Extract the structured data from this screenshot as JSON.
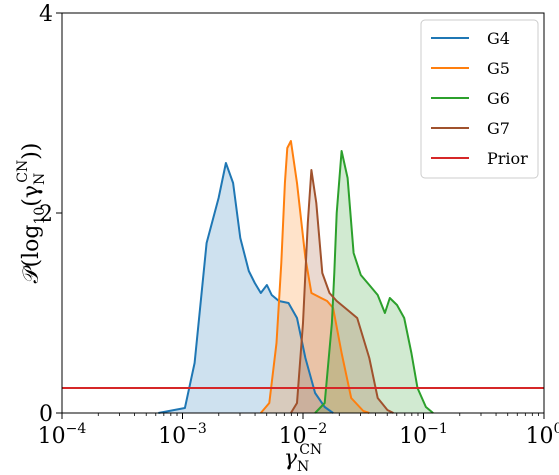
{
  "chart_data": {
    "type": "area",
    "title": "",
    "xlabel": "γN^CN",
    "xlabel_base": "γ",
    "xlabel_sub": "N",
    "xlabel_sup": "CN",
    "ylabel": "𝒫(log10(γN^CN))",
    "ylabel_parts": {
      "prefix": "𝒫(log",
      "log_sub": "10",
      "open": "(γ",
      "sub": "N",
      "sup": "CN",
      "close": "))"
    },
    "x_scale": "log",
    "xlim": [
      0.0001,
      1
    ],
    "ylim": [
      0,
      4
    ],
    "x_ticks": [
      {
        "value": 0.0001,
        "base": "10",
        "exp": "−4"
      },
      {
        "value": 0.001,
        "base": "10",
        "exp": "−3"
      },
      {
        "value": 0.01,
        "base": "10",
        "exp": "−2"
      },
      {
        "value": 0.1,
        "base": "10",
        "exp": "−1"
      },
      {
        "value": 1,
        "base": "10",
        "exp": "0"
      }
    ],
    "y_ticks": [
      {
        "value": 0,
        "label": "0"
      },
      {
        "value": 2,
        "label": "2"
      },
      {
        "value": 4,
        "label": "4"
      }
    ],
    "grid": false,
    "legend_position": "top-right",
    "series": [
      {
        "name": "G4",
        "color": "#1f77b4",
        "points": [
          [
            -3.2,
            0
          ],
          [
            -2.98,
            0.05
          ],
          [
            -2.9,
            0.5
          ],
          [
            -2.8,
            1.7
          ],
          [
            -2.7,
            2.15
          ],
          [
            -2.64,
            2.5
          ],
          [
            -2.58,
            2.3
          ],
          [
            -2.52,
            1.75
          ],
          [
            -2.45,
            1.42
          ],
          [
            -2.4,
            1.3
          ],
          [
            -2.35,
            1.2
          ],
          [
            -2.3,
            1.28
          ],
          [
            -2.26,
            1.18
          ],
          [
            -2.2,
            1.12
          ],
          [
            -2.12,
            1.1
          ],
          [
            -2.05,
            0.95
          ],
          [
            -1.98,
            0.55
          ],
          [
            -1.9,
            0.2
          ],
          [
            -1.82,
            0.06
          ],
          [
            -1.75,
            0
          ]
        ]
      },
      {
        "name": "G5",
        "color": "#ff7f0e",
        "points": [
          [
            -2.35,
            0
          ],
          [
            -2.28,
            0.1
          ],
          [
            -2.22,
            0.7
          ],
          [
            -2.18,
            1.5
          ],
          [
            -2.15,
            2.3
          ],
          [
            -2.13,
            2.65
          ],
          [
            -2.1,
            2.72
          ],
          [
            -2.05,
            2.3
          ],
          [
            -1.98,
            1.55
          ],
          [
            -1.93,
            1.2
          ],
          [
            -1.85,
            1.15
          ],
          [
            -1.8,
            1.12
          ],
          [
            -1.75,
            1.05
          ],
          [
            -1.68,
            0.6
          ],
          [
            -1.6,
            0.15
          ],
          [
            -1.5,
            0.02
          ],
          [
            -1.45,
            0
          ]
        ]
      },
      {
        "name": "G6",
        "color": "#2ca02c",
        "points": [
          [
            -1.9,
            0
          ],
          [
            -1.82,
            0.1
          ],
          [
            -1.76,
            0.9
          ],
          [
            -1.74,
            1.4
          ],
          [
            -1.72,
            2.0
          ],
          [
            -1.68,
            2.62
          ],
          [
            -1.63,
            2.35
          ],
          [
            -1.58,
            1.6
          ],
          [
            -1.52,
            1.38
          ],
          [
            -1.45,
            1.28
          ],
          [
            -1.38,
            1.18
          ],
          [
            -1.32,
            1.0
          ],
          [
            -1.28,
            1.15
          ],
          [
            -1.22,
            1.08
          ],
          [
            -1.16,
            0.95
          ],
          [
            -1.1,
            0.6
          ],
          [
            -1.05,
            0.25
          ],
          [
            -0.98,
            0.06
          ],
          [
            -0.92,
            0
          ]
        ]
      },
      {
        "name": "G7",
        "color": "#a0522d",
        "points": [
          [
            -2.1,
            0
          ],
          [
            -2.05,
            0.1
          ],
          [
            -2.0,
            0.9
          ],
          [
            -1.96,
            1.9
          ],
          [
            -1.93,
            2.43
          ],
          [
            -1.89,
            2.1
          ],
          [
            -1.84,
            1.4
          ],
          [
            -1.78,
            1.2
          ],
          [
            -1.72,
            1.12
          ],
          [
            -1.65,
            1.05
          ],
          [
            -1.55,
            0.95
          ],
          [
            -1.45,
            0.55
          ],
          [
            -1.38,
            0.15
          ],
          [
            -1.3,
            0.03
          ],
          [
            -1.25,
            0
          ]
        ]
      }
    ],
    "reference_lines": [
      {
        "name": "Prior",
        "color": "#d62728",
        "y": 0.25
      }
    ]
  }
}
